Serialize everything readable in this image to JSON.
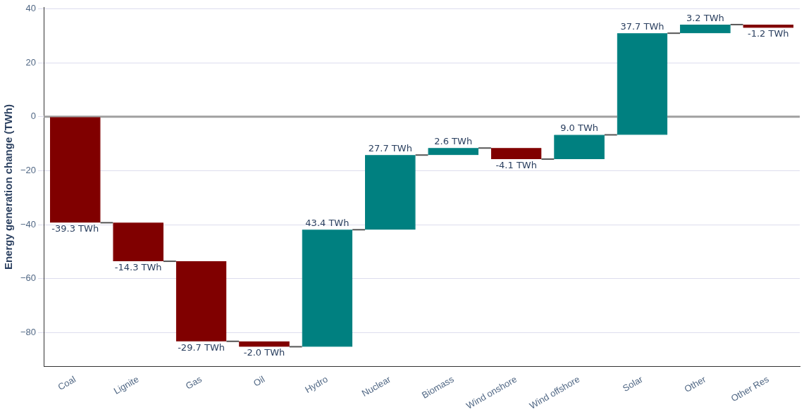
{
  "chart_data": {
    "type": "bar",
    "ylabel": "Energy generation change (TWh)",
    "categories": [
      "Coal",
      "Lignite",
      "Gas",
      "Oil",
      "Hydro",
      "Nuclear",
      "Biomass",
      "Wind onshore",
      "Wind offshore",
      "Solar",
      "Other",
      "Other Res"
    ],
    "values": [
      -39.3,
      -14.3,
      -29.7,
      -2.0,
      43.4,
      27.7,
      2.6,
      -4.1,
      9.0,
      37.7,
      3.2,
      -1.2
    ],
    "base": [
      0,
      -39.3,
      -53.6,
      -83.3,
      -85.3,
      -41.9,
      -14.2,
      -11.6,
      -15.7,
      -6.7,
      31.0,
      34.2
    ],
    "colors": [
      "#800000",
      "#800000",
      "#800000",
      "#800000",
      "#008080",
      "#008080",
      "#008080",
      "#800000",
      "#008080",
      "#008080",
      "#008080",
      "#800000"
    ],
    "value_labels": [
      "-39.3 TWh",
      "-14.3 TWh",
      "-29.7 TWh",
      "-2.0 TWh",
      "43.4 TWh",
      "27.7 TWh",
      "2.6 TWh",
      "-4.1 TWh",
      "9.0 TWh",
      "37.7 TWh",
      "3.2 TWh",
      "-1.2 TWh"
    ],
    "ylim": [
      -92.6,
      40.5
    ],
    "yticks": [
      -80,
      -60,
      -40,
      -20,
      0,
      20,
      40
    ],
    "ref_lines": [
      {
        "axis": "y",
        "value": 0,
        "color": "#a0a0a0"
      }
    ],
    "grid": "y",
    "legend": false
  }
}
